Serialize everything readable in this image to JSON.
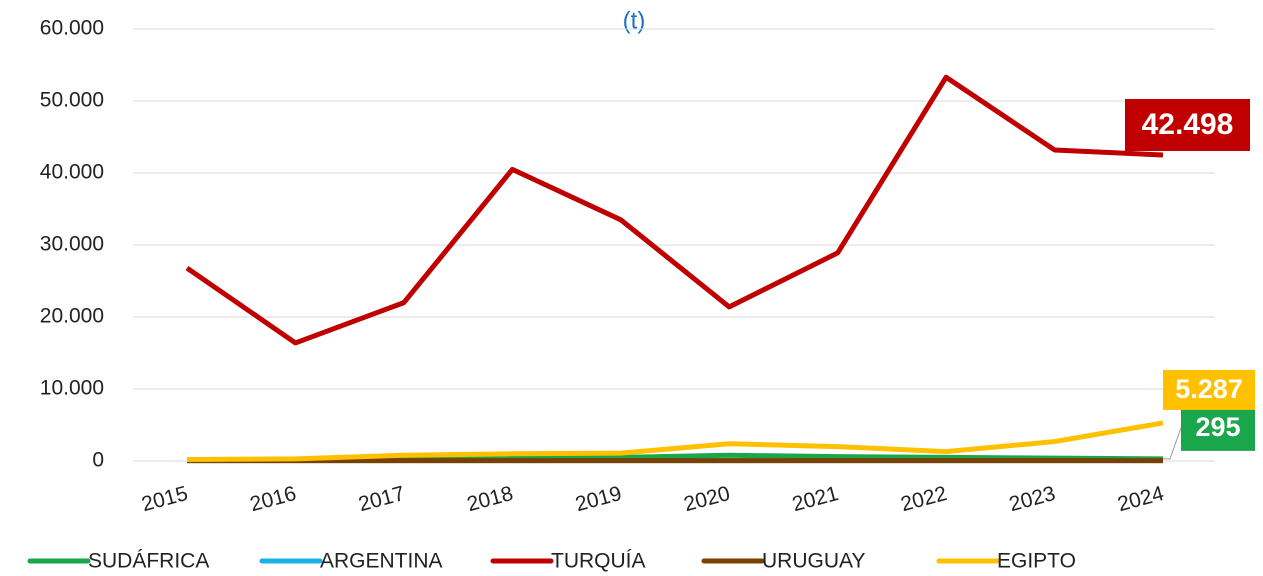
{
  "chart_data": {
    "type": "line",
    "title": "(t)",
    "categories": [
      "2015",
      "2016",
      "2017",
      "2018",
      "2019",
      "2020",
      "2021",
      "2022",
      "2023",
      "2024"
    ],
    "ylim": [
      0,
      60000
    ],
    "yticks": [
      0,
      {
        "value": 10000,
        "label": "10.000"
      },
      {
        "value": 20000,
        "label": "20.000"
      },
      {
        "value": 30000,
        "label": "30.000"
      },
      {
        "value": 40000,
        "label": "40.000"
      },
      {
        "value": 50000,
        "label": "50.000"
      },
      {
        "value": 60000,
        "label": "60.000"
      }
    ],
    "grid": true,
    "legend": "bottom",
    "series": [
      {
        "name": "SUDÁFRICA",
        "color": "#1aa64a",
        "values": [
          100,
          200,
          300,
          400,
          500,
          800,
          600,
          500,
          400,
          295
        ],
        "value_labels": [
          null,
          null,
          null,
          null,
          null,
          null,
          null,
          null,
          null,
          "295"
        ]
      },
      {
        "name": "ARGENTINA",
        "color": "#1ab0e8",
        "values": [
          50,
          50,
          50,
          50,
          50,
          50,
          50,
          50,
          50,
          50
        ]
      },
      {
        "name": "TURQUÍA",
        "color": "#c00000",
        "values": [
          26800,
          16400,
          22000,
          40500,
          33500,
          21400,
          28900,
          53300,
          43200,
          42498
        ],
        "value_labels": [
          null,
          null,
          null,
          null,
          null,
          null,
          null,
          null,
          null,
          "42.498"
        ]
      },
      {
        "name": "URUGUAY",
        "color": "#7b3f00",
        "values": [
          50,
          50,
          50,
          60,
          60,
          60,
          60,
          60,
          60,
          60
        ]
      },
      {
        "name": "EGIPTO",
        "color": "#ffc000",
        "values": [
          200,
          300,
          800,
          1000,
          1100,
          2400,
          2000,
          1300,
          2700,
          5287
        ],
        "value_labels": [
          null,
          null,
          null,
          null,
          null,
          null,
          null,
          null,
          null,
          "5.287"
        ]
      }
    ]
  }
}
